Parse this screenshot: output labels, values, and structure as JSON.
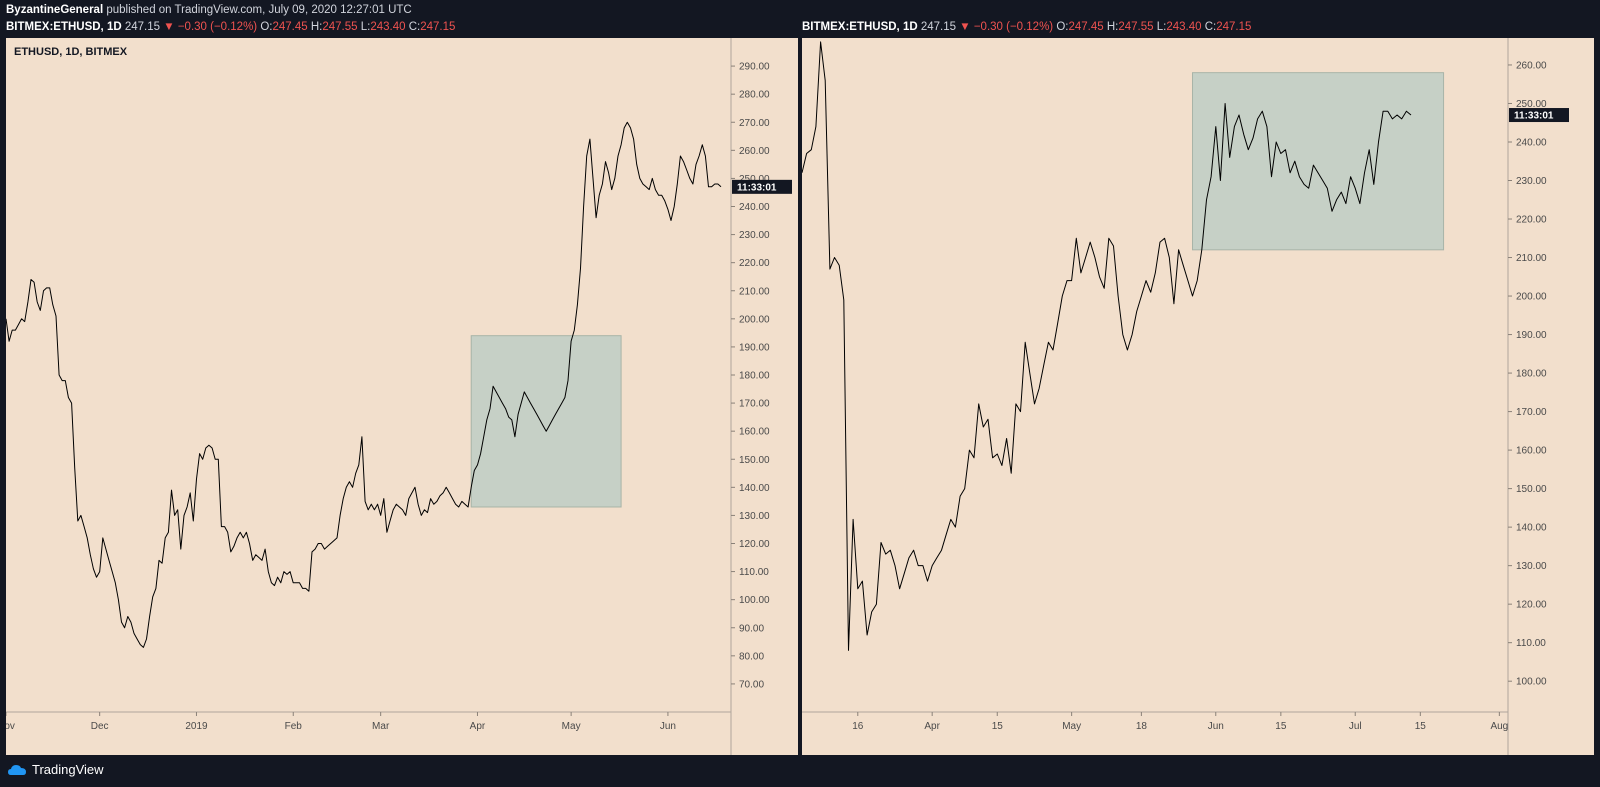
{
  "header": {
    "author": "ByzantineGeneral",
    "published": " published on TradingView.com, July 09, 2020 12:27:01 UTC"
  },
  "symbol_bar": {
    "symbol": "BITMEX:ETHUSD, 1D",
    "price": "247.15",
    "change": "−0.30 (−0.12%)",
    "o_label": "O:",
    "o": "247.45",
    "h_label": "H:",
    "h": "247.55",
    "l_label": "L:",
    "l": "243.40",
    "c_label": "C:",
    "c": "247.15"
  },
  "footer": {
    "brand": "TradingView"
  },
  "colors": {
    "panel_bg": "#f2dfcc",
    "box": "#c6d0c6",
    "line": "#000000",
    "down": "#ef5350"
  },
  "chart_data": [
    {
      "type": "line",
      "title": "ETHUSD, 1D, BITMEX",
      "time_tag": "11:33:01",
      "ylim": [
        60,
        300
      ],
      "y_ticks": [
        70,
        80,
        90,
        100,
        110,
        120,
        130,
        140,
        150,
        160,
        170,
        180,
        190,
        200,
        210,
        220,
        230,
        240,
        250,
        260,
        270,
        280,
        290
      ],
      "x_ticks": [
        {
          "i": 0,
          "label": "Nov"
        },
        {
          "i": 30,
          "label": "Dec"
        },
        {
          "i": 61,
          "label": "2019"
        },
        {
          "i": 92,
          "label": "Feb"
        },
        {
          "i": 120,
          "label": "Mar"
        },
        {
          "i": 151,
          "label": "Apr"
        },
        {
          "i": 181,
          "label": "May"
        },
        {
          "i": 212,
          "label": "Jun"
        }
      ],
      "x_count": 230,
      "box": {
        "x0_index": 149,
        "x1_index": 197,
        "y_low": 133,
        "y_high": 194
      },
      "series": [
        {
          "name": "ETHUSD",
          "values": [
            200,
            192,
            196,
            196,
            198,
            200,
            199,
            206,
            214,
            213,
            206,
            203,
            210,
            211,
            211,
            205,
            201,
            180,
            178,
            178,
            172,
            170,
            147,
            128,
            130,
            126,
            122,
            116,
            111,
            108,
            110,
            122,
            118,
            114,
            110,
            106,
            100,
            92,
            90,
            94,
            92,
            88,
            86,
            84,
            83,
            86,
            94,
            101,
            104,
            114,
            113,
            122,
            124,
            139,
            130,
            132,
            118,
            130,
            133,
            138,
            128,
            143,
            152,
            150,
            154,
            155,
            154,
            150,
            150,
            126,
            126,
            124,
            117,
            119,
            122,
            124,
            122,
            124,
            120,
            114,
            116,
            115,
            114,
            118,
            110,
            106,
            105,
            108,
            106,
            110,
            109,
            110,
            106,
            106,
            106,
            104,
            104,
            103,
            117,
            118,
            120,
            120,
            118,
            119,
            120,
            121,
            122,
            130,
            136,
            140,
            142,
            140,
            145,
            148,
            158,
            135,
            132,
            134,
            132,
            134,
            130,
            136,
            124,
            128,
            132,
            134,
            133,
            132,
            130,
            136,
            138,
            140,
            134,
            130,
            132,
            131,
            136,
            134,
            135,
            137,
            138,
            140,
            138,
            136,
            134,
            133,
            135,
            134,
            133,
            140,
            146,
            148,
            152,
            158,
            164,
            168,
            176,
            174,
            172,
            170,
            168,
            165,
            164,
            158,
            166,
            170,
            174,
            172,
            170,
            168,
            166,
            164,
            162,
            160,
            162,
            164,
            166,
            168,
            170,
            172,
            178,
            192,
            196,
            205,
            218,
            240,
            258,
            264,
            250,
            236,
            244,
            248,
            256,
            252,
            246,
            250,
            258,
            262,
            268,
            270,
            268,
            264,
            255,
            250,
            248,
            247,
            246,
            250,
            246,
            244,
            244,
            242,
            239,
            235,
            240,
            248,
            258,
            256,
            253,
            250,
            248,
            255,
            258,
            262,
            258,
            247,
            247,
            248,
            248,
            247
          ]
        }
      ]
    },
    {
      "type": "line",
      "title": "",
      "time_tag": "11:33:01",
      "ylim": [
        92,
        267
      ],
      "y_ticks": [
        100,
        110,
        120,
        130,
        140,
        150,
        160,
        170,
        180,
        190,
        200,
        210,
        220,
        230,
        240,
        250,
        260
      ],
      "x_ticks": [
        {
          "i": 12,
          "label": "16"
        },
        {
          "i": 28,
          "label": "Apr"
        },
        {
          "i": 42,
          "label": "15"
        },
        {
          "i": 58,
          "label": "May"
        },
        {
          "i": 73,
          "label": "18"
        },
        {
          "i": 89,
          "label": "Jun"
        },
        {
          "i": 103,
          "label": "15"
        },
        {
          "i": 119,
          "label": "Jul"
        },
        {
          "i": 133,
          "label": "15"
        },
        {
          "i": 150,
          "label": "Aug"
        }
      ],
      "x_count": 152,
      "box": {
        "x0_index": 84,
        "x1_index": 138,
        "y_low": 212,
        "y_high": 258
      },
      "series": [
        {
          "name": "ETHUSD",
          "values": [
            232,
            237,
            238,
            244,
            266,
            256,
            207,
            210,
            208,
            199,
            108,
            142,
            124,
            126,
            112,
            118,
            120,
            136,
            133,
            134,
            130,
            124,
            128,
            132,
            134,
            130,
            130,
            126,
            130,
            132,
            134,
            138,
            142,
            140,
            148,
            150,
            160,
            158,
            172,
            166,
            168,
            158,
            159,
            156,
            163,
            154,
            172,
            170,
            188,
            180,
            172,
            176,
            182,
            188,
            186,
            193,
            200,
            204,
            204,
            215,
            206,
            210,
            214,
            210,
            205,
            202,
            215,
            213,
            200,
            190,
            186,
            190,
            196,
            200,
            204,
            201,
            206,
            214,
            215,
            210,
            198,
            212,
            208,
            204,
            200,
            204,
            212,
            225,
            231,
            244,
            230,
            250,
            236,
            244,
            247,
            242,
            238,
            241,
            246,
            248,
            244,
            231,
            240,
            237,
            238,
            232,
            235,
            231,
            229,
            228,
            234,
            232,
            230,
            228,
            222,
            225,
            227,
            224,
            231,
            228,
            224,
            232,
            238,
            229,
            240,
            248,
            248,
            246,
            247,
            246,
            248,
            247
          ]
        }
      ]
    }
  ]
}
